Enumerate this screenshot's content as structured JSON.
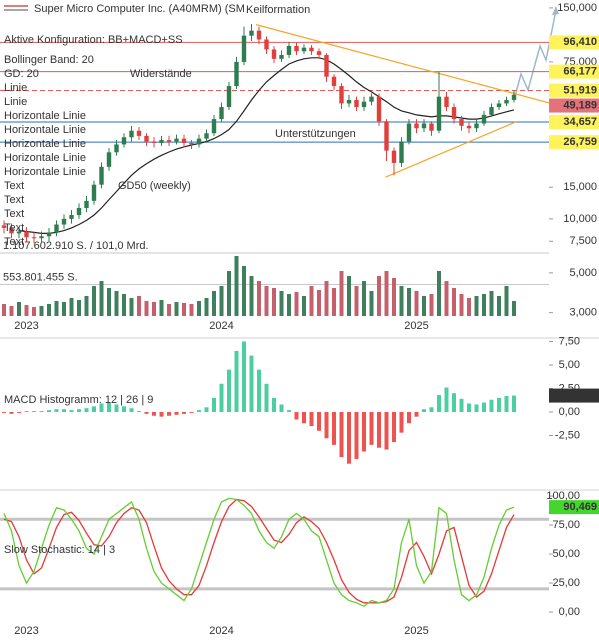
{
  "chart_data": [
    {
      "type": "candlestick",
      "title": "Super Micro Computer Inc. (A40MRM) (SM",
      "categories": [
        null,
        null,
        null,
        "2023",
        null,
        null,
        null,
        null,
        null,
        null,
        null,
        null,
        null,
        null,
        null,
        null,
        null,
        null,
        null,
        null,
        null,
        null,
        null,
        null,
        null,
        null,
        null,
        null,
        null,
        "2024",
        null,
        null,
        null,
        null,
        null,
        null,
        null,
        null,
        null,
        null,
        null,
        null,
        null,
        null,
        null,
        null,
        null,
        null,
        null,
        null,
        null,
        null,
        null,
        null,
        null,
        "2025",
        null,
        null,
        null,
        null,
        null,
        null,
        null,
        null,
        null,
        null,
        null,
        null,
        null
      ],
      "open": [
        9.2,
        8.9,
        8.3,
        8.5,
        7.9,
        7.8,
        8.0,
        8.4,
        9.3,
        10.0,
        10.5,
        11.5,
        12.6,
        15.5,
        19.5,
        23.5,
        26.0,
        28.5,
        31.0,
        29.0,
        27.0,
        26.5,
        27.5,
        27.0,
        28.0,
        26.5,
        26.0,
        28.0,
        30.0,
        36.0,
        42.0,
        55.0,
        75,
        105,
        112,
        100,
        88,
        78,
        82,
        92,
        86,
        90,
        86,
        82,
        62,
        55,
        44,
        46,
        42,
        45,
        48,
        35,
        24,
        20.5,
        27,
        34,
        32,
        34,
        31,
        48,
        42,
        36,
        33,
        32,
        34,
        38,
        42,
        44,
        46
      ],
      "high": [
        9.8,
        9.4,
        9.0,
        9.0,
        8.4,
        8.5,
        8.9,
        9.8,
        10.6,
        11.2,
        12.2,
        13.4,
        16.3,
        20.6,
        24.8,
        27.5,
        30,
        33,
        32.5,
        30,
        28.5,
        29,
        29,
        29.5,
        29.5,
        27.5,
        29.5,
        31.5,
        38,
        44.5,
        58,
        80,
        118,
        122,
        118,
        104,
        92,
        87,
        97,
        96,
        94,
        93,
        89,
        84,
        64,
        57,
        49,
        48,
        48,
        50,
        50,
        36,
        25,
        28.5,
        36,
        36,
        36,
        35,
        66,
        51,
        44,
        37.5,
        34.5,
        36,
        40,
        44,
        46,
        48,
        52
      ],
      "low": [
        8.3,
        7.8,
        7.8,
        7.4,
        7.3,
        7.3,
        7.5,
        8.0,
        8.8,
        9.4,
        10.0,
        10.9,
        12.0,
        14.8,
        18.5,
        22.5,
        25,
        27,
        27.5,
        25.5,
        25,
        25.5,
        25.5,
        26,
        25,
        24.5,
        25,
        27,
        29,
        34.5,
        40.5,
        53,
        72,
        98,
        94,
        83,
        74,
        75,
        79,
        82,
        83,
        82,
        78,
        58,
        52,
        41,
        42,
        40,
        40,
        43,
        33,
        21,
        17.5,
        19.5,
        26,
        30,
        30.5,
        29,
        30,
        40,
        34,
        31,
        30,
        30.5,
        33,
        37,
        40.5,
        42.5,
        44.5
      ],
      "close": [
        8.9,
        8.3,
        8.5,
        7.9,
        7.8,
        8.0,
        8.4,
        9.3,
        10.0,
        10.5,
        11.5,
        12.6,
        15.5,
        19.5,
        23.5,
        26.0,
        28.5,
        31.0,
        29.0,
        27.0,
        26.5,
        27.5,
        27.0,
        28.0,
        26.5,
        26.0,
        28.0,
        30.0,
        36.0,
        42.0,
        55.0,
        75.0,
        105,
        112,
        100,
        88,
        78,
        82,
        92,
        86,
        90,
        86,
        82,
        62,
        55,
        44,
        46,
        42,
        45,
        48,
        35,
        24,
        20.5,
        27,
        34,
        32,
        34,
        31,
        48,
        42,
        36,
        33,
        32,
        34,
        38,
        42,
        44,
        46,
        49.189
      ],
      "close_labels": [
        null,
        null,
        null,
        null,
        null,
        null,
        null,
        null,
        null,
        null,
        null,
        null,
        null,
        null,
        null,
        null,
        null,
        null,
        null,
        null,
        null,
        null,
        null,
        null,
        null,
        null,
        null,
        null,
        null,
        null,
        null,
        null,
        null,
        null,
        null,
        null,
        null,
        null,
        null,
        null,
        null,
        null,
        null,
        null,
        null,
        null,
        null,
        null,
        null,
        null,
        null,
        null,
        null,
        null,
        null,
        null,
        null,
        null,
        null,
        null,
        null,
        null,
        null,
        null,
        null,
        null,
        null,
        null,
        "49,189"
      ],
      "up_color": "#2e7d4f",
      "down_color": "#e0403c",
      "log_scale": true,
      "ylim": [
        2.73,
        166
      ],
      "yticks": [
        {
          "value": 150,
          "label": "150,000"
        },
        {
          "value": 75,
          "label": "75,000"
        },
        {
          "value": 15,
          "label": "15,000"
        },
        {
          "value": 10,
          "label": "10,000"
        },
        {
          "value": 7.5,
          "label": "7,500"
        },
        {
          "value": 5,
          "label": "5,000"
        },
        {
          "value": 3,
          "label": "3,000"
        }
      ],
      "series": [
        {
          "name": "GD50 (weekly)",
          "color": "#222222",
          "values": [
            null,
            null,
            8.6,
            8.5,
            8.4,
            8.3,
            8.3,
            8.4,
            8.6,
            8.9,
            9.3,
            9.8,
            10.5,
            11.5,
            12.8,
            14.2,
            15.8,
            17.5,
            19,
            20.3,
            21.5,
            22.6,
            23.6,
            24.5,
            25.2,
            25.8,
            26.3,
            27,
            28,
            29.5,
            31.5,
            35,
            40,
            46,
            52,
            58,
            63,
            68,
            73,
            76,
            78,
            79,
            79,
            77,
            73,
            68,
            63,
            58,
            54,
            51,
            48,
            45,
            42,
            40,
            39,
            38,
            37.5,
            37,
            37.5,
            37.5,
            37,
            36.5,
            36,
            36,
            36.5,
            37.5,
            38.5,
            39.5,
            40.5
          ]
        }
      ],
      "volume": {
        "up_color": "#3f7f5e",
        "down_color": "#c4606c",
        "values": [
          211000000,
          176000000,
          246000000,
          193000000,
          158000000,
          176000000,
          211000000,
          264000000,
          246000000,
          316000000,
          281000000,
          352000000,
          527000000,
          615000000,
          492000000,
          440000000,
          387000000,
          316000000,
          352000000,
          264000000,
          246000000,
          281000000,
          211000000,
          246000000,
          229000000,
          211000000,
          264000000,
          316000000,
          440000000,
          527000000,
          791000000,
          1055000000,
          879000000,
          703000000,
          615000000,
          527000000,
          492000000,
          440000000,
          387000000,
          422000000,
          352000000,
          527000000,
          457000000,
          615000000,
          492000000,
          791000000,
          703000000,
          527000000,
          615000000,
          440000000,
          703000000,
          791000000,
          668000000,
          527000000,
          492000000,
          440000000,
          352000000,
          387000000,
          791000000,
          615000000,
          492000000,
          387000000,
          316000000,
          352000000,
          387000000,
          440000000,
          352000000,
          527000000,
          264000000
        ],
        "ylim": [
          0,
          5555000000
        ],
        "yticks": [
          {
            "value": 1107602910,
            "label": "1.107.602.910 S. / 101,0 Mrd."
          },
          {
            "value": 553801455,
            "label": "553.801.455 S."
          }
        ]
      },
      "config_labels": [
        "Aktive Konfiguration: BB+MACD+SS",
        "Bollinger Band: 20",
        "GD: 20"
      ],
      "trendlines": [
        {
          "name": "Linie",
          "color": "#f5a623",
          "points": [
            [
              33.6,
              121
            ],
            [
              72.7,
              44.3
            ]
          ]
        },
        {
          "name": "Linie",
          "color": "#f5a623",
          "points": [
            [
              50.9,
              17.1
            ],
            [
              68.3,
              34.8
            ]
          ]
        }
      ],
      "hlines": [
        {
          "name": "Horizontale Linie",
          "color": "#2a6fb5",
          "value": 34.657,
          "label": "34,657",
          "dashed": false
        },
        {
          "name": "Horizontale Linie",
          "color": "#2a6fb5",
          "value": 26.759,
          "label": "26,759",
          "dashed": false
        },
        {
          "name": "Horizontale Linie",
          "color": "#e05a5a",
          "value": 96.41,
          "label": "96,410",
          "dashed": false
        },
        {
          "name": "Horizontale Linie",
          "color": "#e05a5a",
          "value": 66.177,
          "label": "66,177",
          "dashed": false
        },
        {
          "name": "Horizontale Linie",
          "color": "#e05a5a",
          "value": 51.919,
          "label": "51,919",
          "dashed": true
        }
      ],
      "text_labels": [
        "Text",
        "Text",
        "Text",
        "Text",
        "Text"
      ],
      "annotations": [
        {
          "text": "Keilformation",
          "color": "#f5a623"
        },
        {
          "text": "Widerstände",
          "color": "#e05a5a"
        },
        {
          "text": "Unterstützungen",
          "color": "#2a6fb5"
        }
      ]
    },
    {
      "type": "bar",
      "label": "MACD Histogramm: 12 | 26 | 9",
      "values": [
        -0.1,
        -0.2,
        -0.1,
        0.1,
        0.1,
        0.1,
        0.2,
        0.3,
        0.3,
        0.2,
        0.3,
        0.4,
        0.6,
        0.9,
        1.0,
        0.8,
        0.6,
        0.4,
        0.1,
        -0.2,
        -0.4,
        -0.5,
        -0.4,
        -0.3,
        -0.2,
        -0.1,
        0.2,
        0.5,
        1.5,
        3.0,
        4.5,
        6.5,
        7.5,
        6.0,
        4.5,
        3.0,
        1.5,
        0.8,
        0.2,
        -0.8,
        -1.2,
        -1.5,
        -2.0,
        -2.8,
        -3.5,
        -4.8,
        -5.5,
        -5.0,
        -4.2,
        -3.5,
        -3.8,
        -4.0,
        -3.2,
        -2.2,
        -1.2,
        -0.5,
        0.3,
        0.5,
        1.8,
        2.6,
        2.0,
        1.4,
        0.9,
        0.8,
        1.0,
        1.3,
        1.5,
        1.7,
        1.74405
      ],
      "value_labels": [
        null,
        null,
        null,
        null,
        null,
        null,
        null,
        null,
        null,
        null,
        null,
        null,
        null,
        null,
        null,
        null,
        null,
        null,
        null,
        null,
        null,
        null,
        null,
        null,
        null,
        null,
        null,
        null,
        null,
        null,
        null,
        null,
        null,
        null,
        null,
        null,
        null,
        null,
        null,
        null,
        null,
        null,
        null,
        null,
        null,
        null,
        null,
        null,
        null,
        null,
        null,
        null,
        null,
        null,
        null,
        null,
        null,
        null,
        null,
        null,
        null,
        null,
        null,
        null,
        null,
        null,
        null,
        null,
        "1,74405"
      ],
      "pos_color": "#4ccfa0",
      "neg_color": "#ef5350",
      "ylim": [
        -8.3,
        7.87
      ],
      "yticks": [
        {
          "value": 7.5,
          "label": "7,50"
        },
        {
          "value": 5,
          "label": "5,00"
        },
        {
          "value": 2.5,
          "label": "2,50"
        },
        {
          "value": 0,
          "label": "0,00"
        },
        {
          "value": -2.5,
          "label": "-2,50"
        }
      ]
    },
    {
      "type": "line",
      "label": "Slow Stochastic: 14 | 3",
      "categories": [
        null,
        null,
        null,
        "2023",
        null,
        null,
        null,
        null,
        null,
        null,
        null,
        null,
        null,
        null,
        null,
        null,
        null,
        null,
        null,
        null,
        null,
        null,
        null,
        null,
        null,
        null,
        null,
        null,
        null,
        "2024",
        null,
        null,
        null,
        null,
        null,
        null,
        null,
        null,
        null,
        null,
        null,
        null,
        null,
        null,
        null,
        null,
        null,
        null,
        null,
        null,
        null,
        null,
        null,
        null,
        null,
        "2025",
        null,
        null,
        null,
        null,
        null,
        null,
        null,
        null,
        null,
        null,
        null,
        null,
        null
      ],
      "series": [
        {
          "color": "#e53935",
          "values": [
            80,
            78,
            65,
            45,
            33,
            38,
            55,
            73,
            84,
            86,
            79,
            68,
            58,
            57,
            65,
            77,
            85,
            90,
            88,
            77,
            57,
            38,
            27,
            20,
            15,
            15,
            23,
            40,
            60,
            78,
            91,
            97,
            96,
            91,
            82,
            72,
            62,
            60,
            67,
            77,
            82,
            78,
            72,
            60,
            45,
            28,
            17,
            11,
            8,
            8,
            8,
            9,
            13,
            30,
            53,
            60,
            48,
            33,
            50,
            70,
            73,
            48,
            23,
            13,
            18,
            33,
            53,
            73,
            84
          ]
        },
        {
          "color": "#66cc33",
          "values": [
            85,
            70,
            40,
            25,
            35,
            55,
            75,
            90,
            88,
            80,
            70,
            55,
            50,
            65,
            80,
            85,
            90,
            95,
            80,
            55,
            35,
            25,
            20,
            15,
            10,
            20,
            40,
            60,
            80,
            95,
            98,
            97,
            92,
            85,
            70,
            60,
            55,
            65,
            80,
            85,
            80,
            70,
            65,
            45,
            25,
            15,
            10,
            8,
            5,
            10,
            8,
            10,
            20,
            60,
            80,
            40,
            25,
            35,
            90,
            85,
            45,
            15,
            10,
            15,
            30,
            55,
            75,
            88,
            90.469
          ],
          "value_labels": [
            null,
            null,
            null,
            null,
            null,
            null,
            null,
            null,
            null,
            null,
            null,
            null,
            null,
            null,
            null,
            null,
            null,
            null,
            null,
            null,
            null,
            null,
            null,
            null,
            null,
            null,
            null,
            null,
            null,
            null,
            null,
            null,
            null,
            null,
            null,
            null,
            null,
            null,
            null,
            null,
            null,
            null,
            null,
            null,
            null,
            null,
            null,
            null,
            null,
            null,
            null,
            null,
            null,
            null,
            null,
            null,
            null,
            null,
            null,
            null,
            null,
            null,
            null,
            null,
            null,
            null,
            null,
            null,
            "90,469"
          ]
        }
      ],
      "bands": [
        80,
        20
      ],
      "ylim": [
        -21.5,
        103.5
      ],
      "yticks": [
        {
          "value": 100,
          "label": "100,00"
        },
        {
          "value": 75,
          "label": "75,00"
        },
        {
          "value": 50,
          "label": "50,00"
        },
        {
          "value": 25,
          "label": "25,00"
        },
        {
          "value": 0,
          "label": "0,00"
        }
      ]
    }
  ]
}
